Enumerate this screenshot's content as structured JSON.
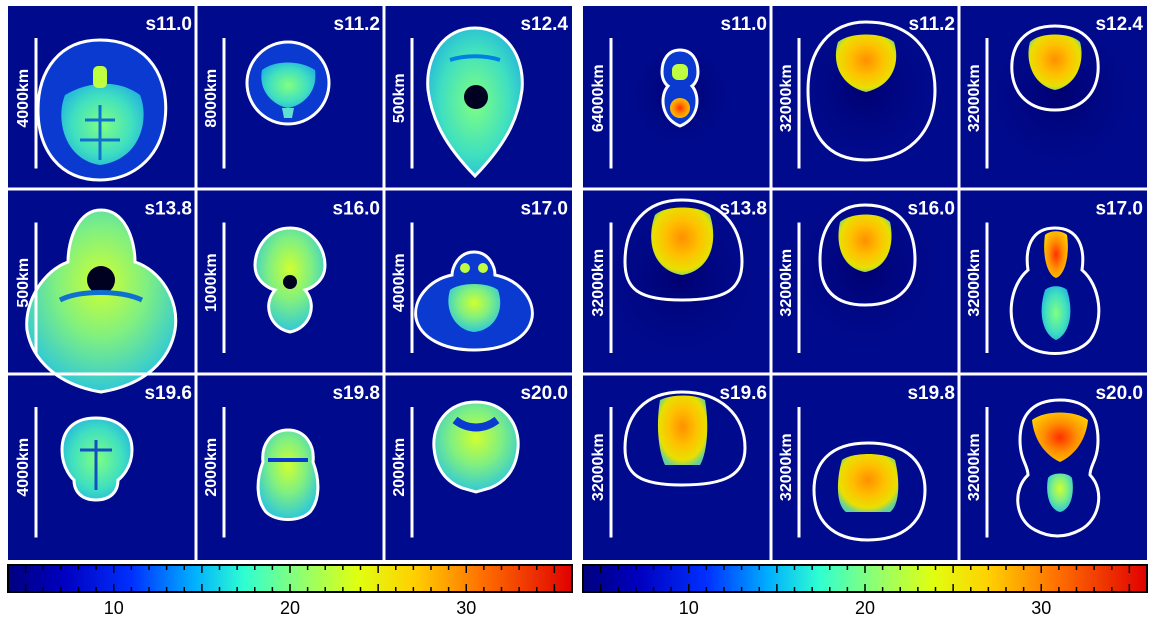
{
  "left_grid": {
    "panels": [
      {
        "model": "s11.0",
        "scale": "4000km"
      },
      {
        "model": "s11.2",
        "scale": "8000km"
      },
      {
        "model": "s12.4",
        "scale": "500km"
      },
      {
        "model": "s13.8",
        "scale": "500km"
      },
      {
        "model": "s16.0",
        "scale": "1000km"
      },
      {
        "model": "s17.0",
        "scale": "4000km"
      },
      {
        "model": "s19.6",
        "scale": "4000km"
      },
      {
        "model": "s19.8",
        "scale": "2000km"
      },
      {
        "model": "s20.0",
        "scale": "2000km"
      }
    ],
    "colorbar": {
      "min": 4,
      "max": 36,
      "ticks": [
        "10",
        "20",
        "30"
      ],
      "tick_values": [
        10,
        20,
        30
      ]
    }
  },
  "right_grid": {
    "panels": [
      {
        "model": "s11.0",
        "scale": "64000km"
      },
      {
        "model": "s11.2",
        "scale": "32000km"
      },
      {
        "model": "s12.4",
        "scale": "32000km"
      },
      {
        "model": "s13.8",
        "scale": "32000km"
      },
      {
        "model": "s16.0",
        "scale": "32000km"
      },
      {
        "model": "s17.0",
        "scale": "32000km"
      },
      {
        "model": "s19.6",
        "scale": "32000km"
      },
      {
        "model": "s19.8",
        "scale": "32000km"
      },
      {
        "model": "s20.0",
        "scale": "32000km"
      }
    ],
    "colorbar": {
      "min": 4,
      "max": 36,
      "ticks": [
        "10",
        "20",
        "30"
      ],
      "tick_values": [
        10,
        20,
        30
      ]
    }
  },
  "colors": {
    "background": "#000a8c",
    "contour": "#ffffff",
    "colormap": [
      "#00007f",
      "#0000c8",
      "#0050ff",
      "#00c8ff",
      "#40ffc0",
      "#a0ff60",
      "#ffff00",
      "#ffb000",
      "#ff5000",
      "#e00000"
    ]
  }
}
